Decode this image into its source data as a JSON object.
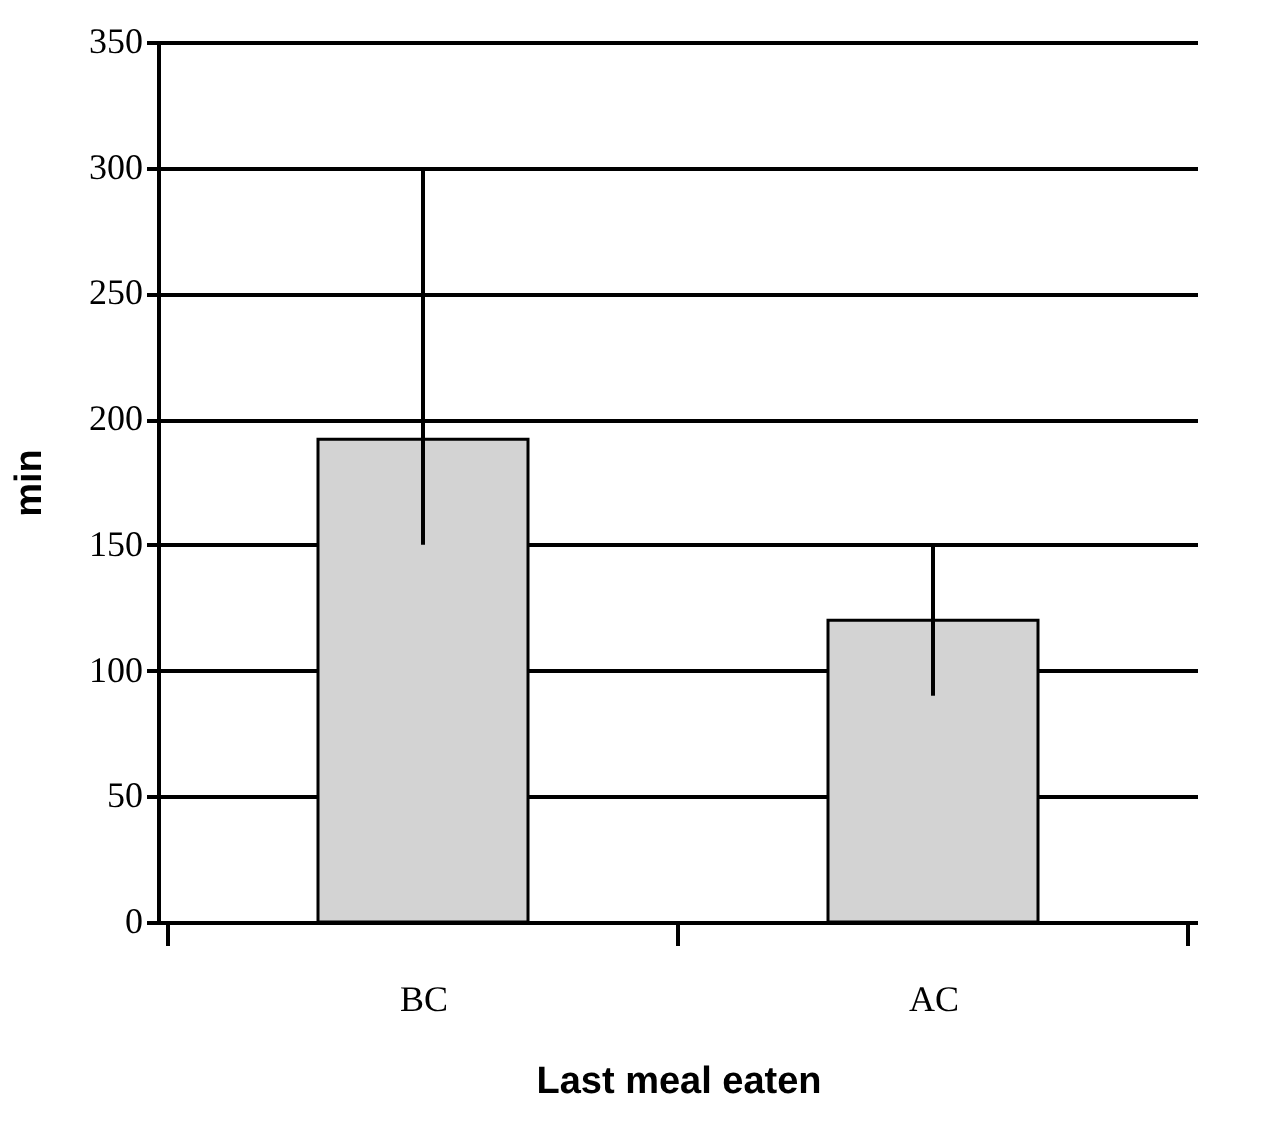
{
  "chart_data": {
    "type": "bar",
    "xlabel": "Last meal eaten",
    "ylabel": "min",
    "categories": [
      "BC",
      "AC"
    ],
    "series": [
      {
        "color": "#d3d3d3",
        "values": [
          192,
          120
        ],
        "errors": [
          [
            150,
            300
          ],
          [
            90,
            150
          ]
        ]
      }
    ],
    "ylim": [
      0,
      350
    ],
    "yticks": [
      0,
      50,
      100,
      150,
      200,
      250,
      300,
      350
    ],
    "grid": "y"
  }
}
